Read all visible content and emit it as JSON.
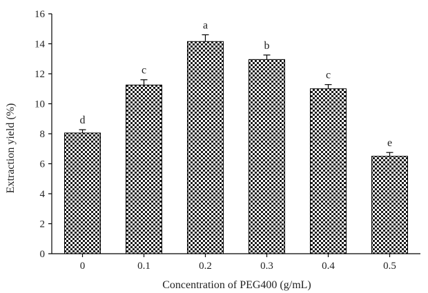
{
  "chart_data": {
    "type": "bar",
    "categories": [
      "0",
      "0.1",
      "0.2",
      "0.3",
      "0.4",
      "0.5"
    ],
    "values": [
      8.05,
      11.25,
      14.15,
      12.95,
      11.0,
      6.5
    ],
    "errors": [
      0.22,
      0.35,
      0.45,
      0.3,
      0.28,
      0.25
    ],
    "significance_labels": [
      "d",
      "c",
      "a",
      "b",
      "c",
      "e"
    ],
    "xlabel": "Concentration of PEG400 (g/mL)",
    "ylabel": "Extraction yield (%)",
    "ylim": [
      0,
      16
    ],
    "yticks": [
      "0",
      "2",
      "4",
      "6",
      "8",
      "10",
      "12",
      "14",
      "16"
    ],
    "grid": false,
    "legend": "none",
    "bar_fill": "checkerboard pattern",
    "colors": {
      "bar_pattern": "#1a1a1a",
      "bar_background": "#ffffff",
      "axis": "#000000"
    }
  }
}
